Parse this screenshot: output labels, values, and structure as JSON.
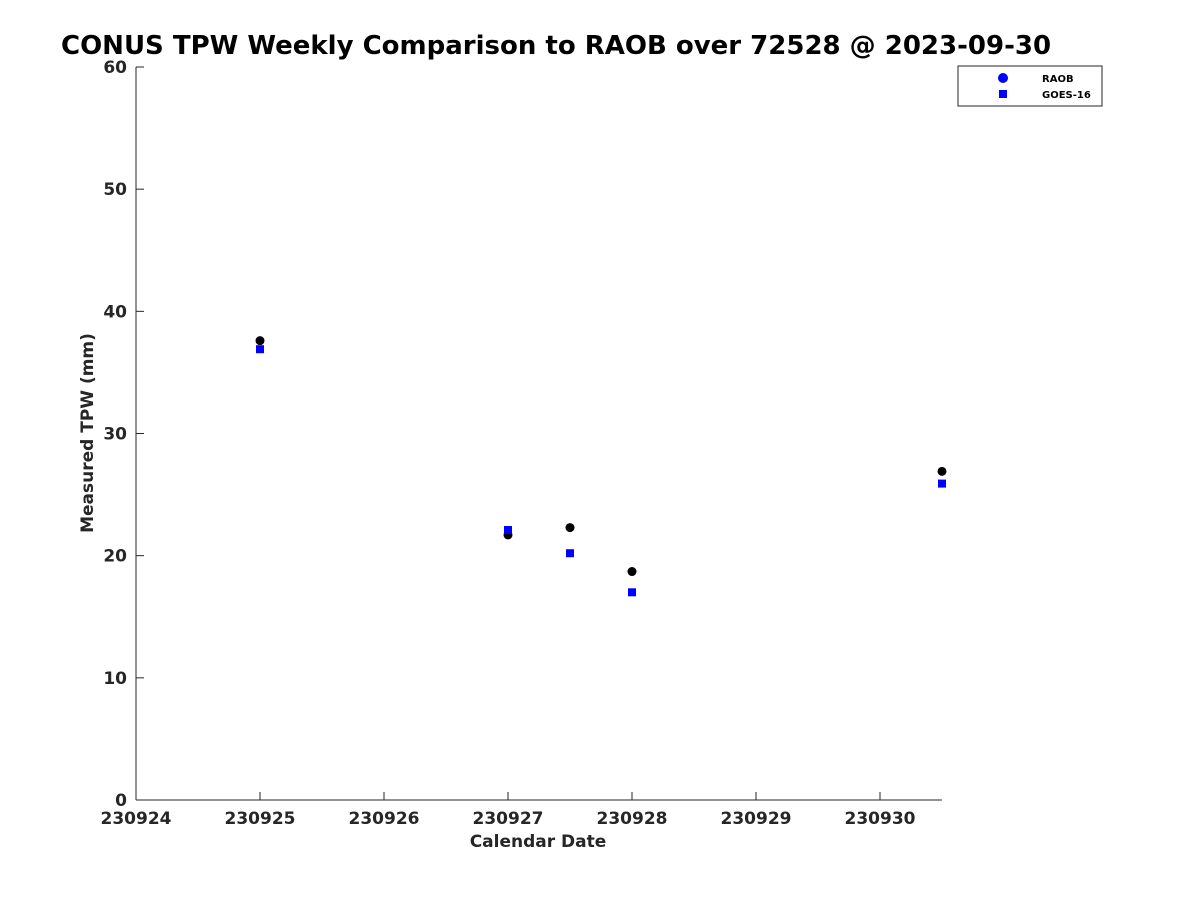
{
  "chart_data": {
    "type": "scatter",
    "title": "CONUS TPW Weekly Comparison to RAOB over 72528 @ 2023-09-30",
    "xlabel": "Calendar Date",
    "ylabel": "Measured TPW (mm)",
    "xlim": [
      "2023-09-24",
      "2023-09-30 12:00"
    ],
    "ylim": [
      0,
      60
    ],
    "x_ticks": [
      {
        "value": "2023-09-24",
        "label": "230924"
      },
      {
        "value": "2023-09-25",
        "label": "230925"
      },
      {
        "value": "2023-09-26",
        "label": "230926"
      },
      {
        "value": "2023-09-27",
        "label": "230927"
      },
      {
        "value": "2023-09-28",
        "label": "230928"
      },
      {
        "value": "2023-09-29",
        "label": "230929"
      },
      {
        "value": "2023-09-30",
        "label": "230930"
      }
    ],
    "y_ticks": [
      0,
      10,
      20,
      30,
      40,
      50,
      60
    ],
    "grid": false,
    "legend_position": "top-right",
    "series": [
      {
        "name": "RAOB",
        "marker": "circle",
        "color": "#000000",
        "legend_color": "#0000ff",
        "points": [
          {
            "x": "2023-09-25 00:00",
            "y": 37.6
          },
          {
            "x": "2023-09-27 00:00",
            "y": 21.7
          },
          {
            "x": "2023-09-27 12:00",
            "y": 22.3
          },
          {
            "x": "2023-09-28 00:00",
            "y": 18.7
          },
          {
            "x": "2023-09-30 12:00",
            "y": 26.9
          }
        ]
      },
      {
        "name": "GOES-16",
        "marker": "square",
        "color": "#0000ff",
        "legend_color": "#0000ff",
        "points": [
          {
            "x": "2023-09-25 00:00",
            "y": 36.9
          },
          {
            "x": "2023-09-27 00:00",
            "y": 22.1
          },
          {
            "x": "2023-09-27 12:00",
            "y": 20.2
          },
          {
            "x": "2023-09-28 00:00",
            "y": 17.0
          },
          {
            "x": "2023-09-30 12:00",
            "y": 25.9
          }
        ]
      }
    ]
  }
}
